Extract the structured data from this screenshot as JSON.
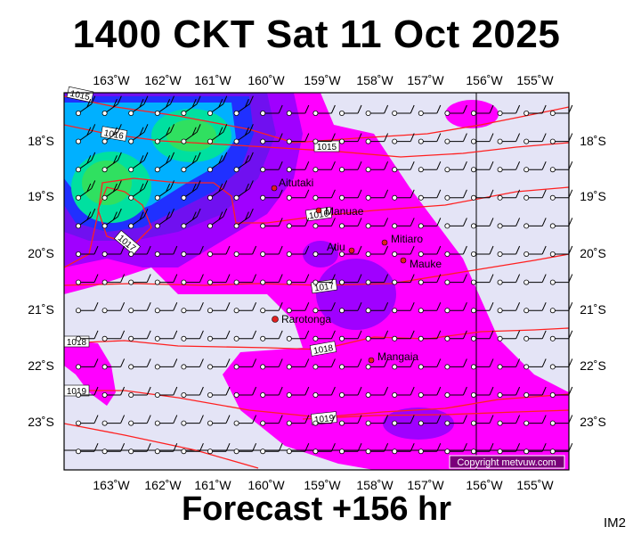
{
  "title": "1400 CKT Sat 11 Oct 2025",
  "footer": "Forecast +156 hr",
  "corner_tag": "IM2",
  "copyright": "Copyright metvuw.com",
  "map": {
    "lon_ticks": [
      "163˚W",
      "162˚W",
      "161˚W",
      "160˚W",
      "159˚W",
      "158˚W",
      "157˚W",
      "156˚W",
      "155˚W"
    ],
    "lat_ticks": [
      "18˚S",
      "19˚S",
      "20˚S",
      "21˚S",
      "22˚S",
      "23˚S"
    ],
    "isobar_labels": [
      "1015",
      "1016",
      "1016",
      "1017",
      "1017",
      "1018",
      "1018",
      "1019",
      "1019"
    ],
    "places": [
      "Aitutaki",
      "Manuae",
      "Atiu",
      "Mitiaro",
      "Mauke",
      "Rarotonga",
      "Mangaia"
    ],
    "colors": {
      "background": "#e4e4f6",
      "magenta": "#ff00ff",
      "purple": "#a000ff",
      "violet": "#7010f0",
      "blue": "#2030ff",
      "cyan": "#00b0ff",
      "teal": "#00e0a0",
      "green": "#30e060",
      "isobar": "#ff2020"
    }
  }
}
